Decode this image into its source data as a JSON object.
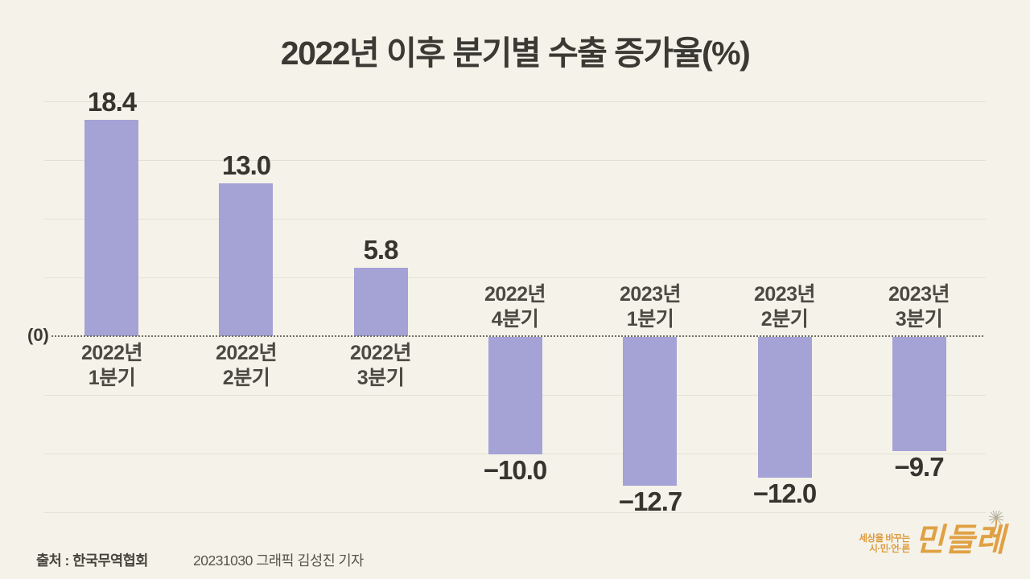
{
  "title": "2022년 이후 분기별 수출 증가율(%)",
  "zero_label": "(0)",
  "footer": {
    "source": "출처 : 한국무역협회",
    "credit": "20231030 그래픽 김성진 기자"
  },
  "logo": {
    "tagline_line1": "세상을 바꾸는",
    "tagline_line2": "시·민·언·론",
    "brand": "민들레",
    "dandelion_icon": "dandelion-seed-head"
  },
  "colors": {
    "background": "#f5f3e9",
    "bar": "#a5a2d6",
    "gridline": "#e4e1d4",
    "zero_line": "#6f6e66",
    "title_text": "#3a3933",
    "category_text": "#4b4a42",
    "value_text": "#35342e",
    "footer_text": "#45443c",
    "logo_orange": "#dc9a3b"
  },
  "chart_data": {
    "type": "bar",
    "title": "2022년 이후 분기별 수출 증가율(%)",
    "unit": "%",
    "categories": [
      "2022년 1분기",
      "2022년 2분기",
      "2022년 3분기",
      "2022년 4분기",
      "2023년 1분기",
      "2023년 2분기",
      "2023년 3분기"
    ],
    "values": [
      18.4,
      13.0,
      5.8,
      -10.0,
      -12.7,
      -12.0,
      -9.7
    ],
    "value_labels": [
      "18.4",
      "13.0",
      "5.8",
      "−10.0",
      "−12.7",
      "−12.0",
      "−9.7"
    ],
    "ylabel": "",
    "xlabel": "",
    "ylim": [
      -15,
      20
    ],
    "gridline_step": 5,
    "grid": true,
    "zero_line_style": "dotted",
    "zero_axis_label": "(0)",
    "legend": false
  }
}
